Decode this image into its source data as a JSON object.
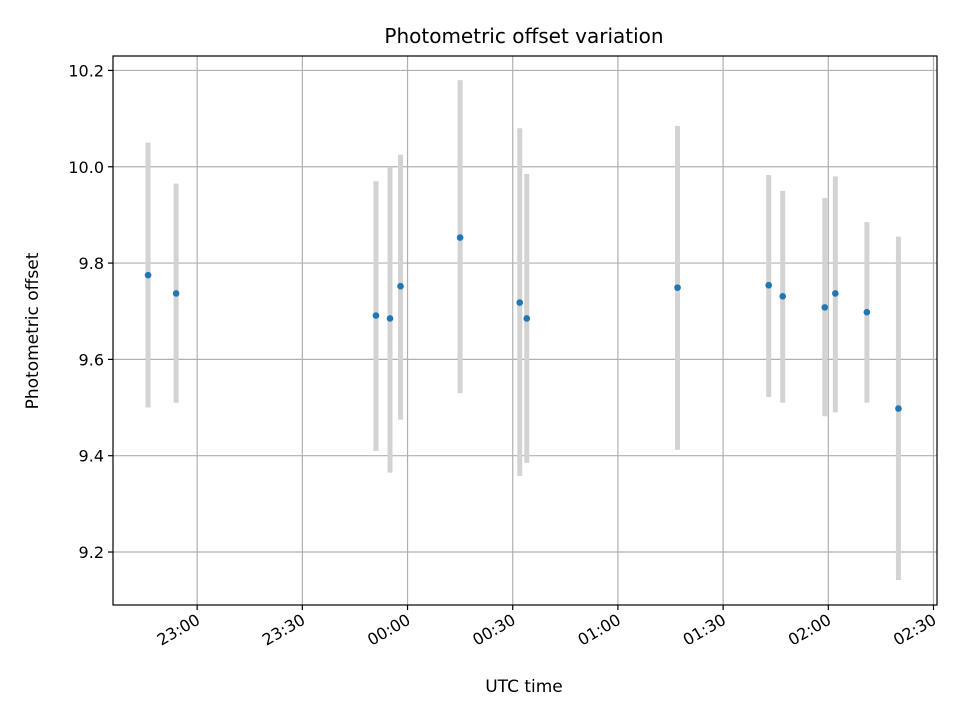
{
  "chart_data": {
    "type": "scatter",
    "title": "Photometric offset variation",
    "xlabel": "UTC time",
    "ylabel": "Photometric offset",
    "grid": true,
    "legend": "none",
    "x_unit": "time of day (HH:MM), run spans midnight",
    "xlim": [
      "22:36",
      "02:31"
    ],
    "ylim": [
      9.09,
      10.23
    ],
    "x_ticks": [
      "23:00",
      "23:30",
      "00:00",
      "00:30",
      "01:00",
      "01:30",
      "02:00",
      "02:30"
    ],
    "y_ticks": [
      9.2,
      9.4,
      9.6,
      9.8,
      10.0,
      10.2
    ],
    "y_tick_labels": [
      "9.2",
      "9.4",
      "9.6",
      "9.8",
      "10.0",
      "10.2"
    ],
    "colors": {
      "point": "#1f77b4",
      "errorbar": "#d3d3d3",
      "grid": "#b0b0b0"
    },
    "series": [
      {
        "points": [
          {
            "x": "22:46",
            "y": 9.775,
            "err_low": 9.5,
            "err_high": 10.05
          },
          {
            "x": "22:54",
            "y": 9.737,
            "err_low": 9.51,
            "err_high": 9.965
          },
          {
            "x": "23:51",
            "y": 9.691,
            "err_low": 9.41,
            "err_high": 9.97
          },
          {
            "x": "23:55",
            "y": 9.685,
            "err_low": 9.365,
            "err_high": 10.0
          },
          {
            "x": "23:58",
            "y": 9.752,
            "err_low": 9.475,
            "err_high": 10.025
          },
          {
            "x": "00:15",
            "y": 9.853,
            "err_low": 9.53,
            "err_high": 10.18
          },
          {
            "x": "00:32",
            "y": 9.718,
            "err_low": 9.358,
            "err_high": 10.08
          },
          {
            "x": "00:34",
            "y": 9.685,
            "err_low": 9.385,
            "err_high": 9.985
          },
          {
            "x": "01:17",
            "y": 9.749,
            "err_low": 9.412,
            "err_high": 10.085
          },
          {
            "x": "01:43",
            "y": 9.754,
            "err_low": 9.522,
            "err_high": 9.983
          },
          {
            "x": "01:47",
            "y": 9.731,
            "err_low": 9.51,
            "err_high": 9.95
          },
          {
            "x": "01:59",
            "y": 9.708,
            "err_low": 9.482,
            "err_high": 9.935
          },
          {
            "x": "02:02",
            "y": 9.737,
            "err_low": 9.49,
            "err_high": 9.98
          },
          {
            "x": "02:11",
            "y": 9.698,
            "err_low": 9.51,
            "err_high": 9.885
          },
          {
            "x": "02:20",
            "y": 9.498,
            "err_low": 9.142,
            "err_high": 9.855
          }
        ]
      }
    ]
  }
}
